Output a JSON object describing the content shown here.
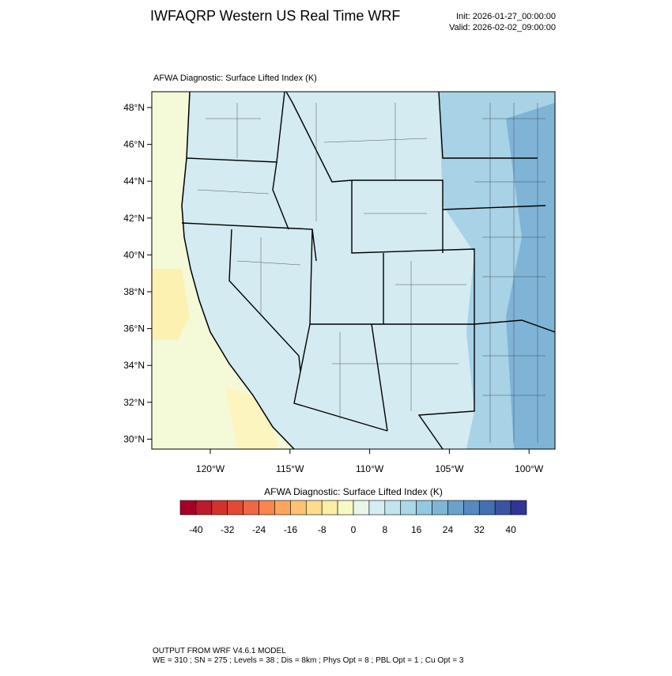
{
  "header": {
    "title": "IWFAQRP Western US Real Time WRF",
    "init": "Init: 2026-01-27_00:00:00",
    "valid": "Valid: 2026-02-02_09:00:00"
  },
  "map": {
    "subtitle": "AFWA Diagnostic: Surface Lifted Index   (K)",
    "lat_labels": [
      "48°N",
      "46°N",
      "44°N",
      "42°N",
      "40°N",
      "38°N",
      "36°N",
      "34°N",
      "32°N",
      "30°N"
    ],
    "lon_labels": [
      "120°W",
      "115°W",
      "110°W",
      "105°W",
      "100°W"
    ]
  },
  "colorbar": {
    "title": "AFWA Diagnostic: Surface Lifted Index  (K)",
    "labels": [
      "-40",
      "-32",
      "-24",
      "-16",
      "-8",
      "0",
      "8",
      "16",
      "24",
      "32",
      "40"
    ],
    "colors": [
      "#a50026",
      "#bd1a2c",
      "#d3322b",
      "#e34a33",
      "#f06744",
      "#f7864f",
      "#fba55f",
      "#fdc273",
      "#fedc8c",
      "#fdeea6",
      "#f7f9c4",
      "#e8f5e8",
      "#d5edf2",
      "#c2e4ef",
      "#abd7e8",
      "#94c8e0",
      "#7fb6d6",
      "#6aa2cb",
      "#5689bf",
      "#4570b0",
      "#3a53a3",
      "#313695"
    ]
  },
  "footer": {
    "line1": "OUTPUT FROM WRF V4.6.1 MODEL",
    "line2": "WE = 310 ; SN = 275 ; Levels = 38 ; Dis = 8km ; Phys Opt = 8 ; PBL Opt = 1 ; Cu Opt = 3"
  }
}
